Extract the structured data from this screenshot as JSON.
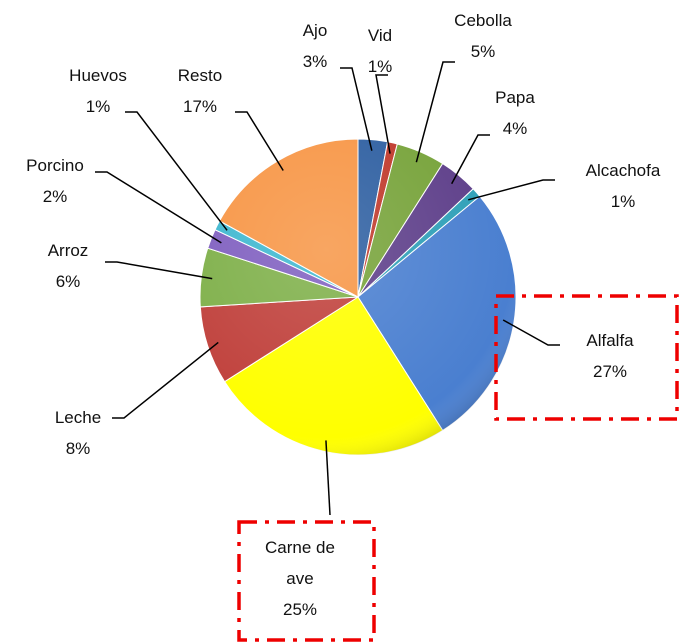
{
  "chart_data": {
    "type": "pie",
    "categories": [
      "Ajo",
      "Vid",
      "Cebolla",
      "Papa",
      "Alcachofa",
      "Alfalfa",
      "Carne de ave",
      "Leche",
      "Arroz",
      "Porcino",
      "Huevos",
      "Resto"
    ],
    "values": [
      3,
      1,
      5,
      4,
      1,
      27,
      25,
      8,
      6,
      2,
      1,
      17
    ],
    "value_labels": [
      "3%",
      "1%",
      "5%",
      "4%",
      "1%",
      "27%",
      "25%",
      "8%",
      "6%",
      "2%",
      "1%",
      "17%"
    ],
    "colors": [
      "#2e5fa1",
      "#c0392b",
      "#77a33a",
      "#5e3f8a",
      "#2fa0b8",
      "#4a7fd0",
      "#ffff00",
      "#c0413c",
      "#7fb04a",
      "#8060c0",
      "#3fb8d0",
      "#f79646"
    ]
  }
}
